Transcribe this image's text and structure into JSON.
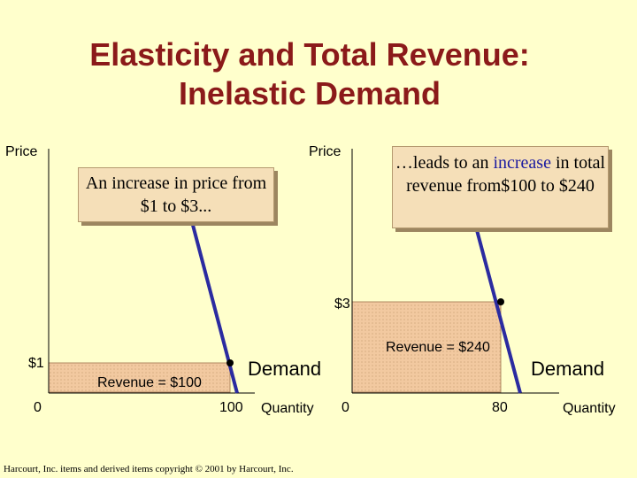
{
  "title": {
    "line1": "Elasticity and Total Revenue:",
    "line2": "Inelastic Demand"
  },
  "left_graph": {
    "price_label": "Price",
    "price_tick": "$1",
    "origin": "0",
    "quantity_tick": "100",
    "quantity_label": "Quantity",
    "revenue_label": "Revenue = $100",
    "demand_label": "Demand",
    "callout": "An increase in price from $1 to $3..."
  },
  "right_graph": {
    "price_label": "Price",
    "price_tick": "$3",
    "origin": "0",
    "quantity_tick": "80",
    "quantity_label": "Quantity",
    "revenue_label": "Revenue = $240",
    "demand_label": "Demand",
    "callout_pre": "…leads to an ",
    "callout_highlight": "increase",
    "callout_post": " in total revenue from$100 to $240"
  },
  "colors": {
    "demand_line": "#2B2BA0",
    "revenue_fill": "#F2C9A0",
    "title": "#8B1A1A"
  },
  "footer": "Harcourt, Inc. items and derived items copyright © 2001 by Harcourt, Inc."
}
